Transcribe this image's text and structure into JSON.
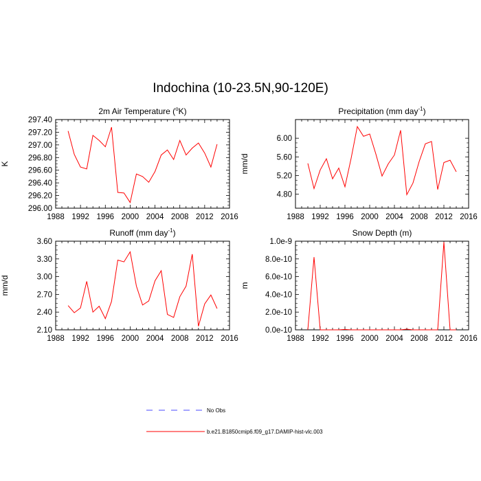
{
  "figure": {
    "title": "Indochina (10-23.5N,90-120E)"
  },
  "legend": {
    "entries": [
      {
        "label": "No Obs",
        "color": "#4a4aff",
        "style": "dashed"
      },
      {
        "label": "b.e21.B1850cmip6.f09_g17.DAMIP-hist-vlc.003",
        "color": "#ff0000",
        "style": "solid"
      }
    ]
  },
  "chart_data": [
    {
      "type": "line",
      "title": "2m Air Temperature (",
      "title_sup": "o",
      "title_end": "K)",
      "xlabel": "",
      "ylabel": "K",
      "xlim": [
        1988,
        2016
      ],
      "ylim": [
        296.0,
        297.4
      ],
      "xticks": [
        1988,
        1992,
        1996,
        2000,
        2004,
        2008,
        2012,
        2016
      ],
      "yticks": [
        296.0,
        296.2,
        296.4,
        296.6,
        296.8,
        297.0,
        297.2,
        297.4
      ],
      "ytick_labels": [
        "296.00",
        "296.20",
        "296.40",
        "296.60",
        "296.80",
        "297.00",
        "297.20",
        "297.40"
      ],
      "series": [
        {
          "name": "b.e21.B1850cmip6.f09_g17.DAMIP-hist-vlc.003",
          "color": "#ff0000",
          "x": [
            1990,
            1991,
            1992,
            1993,
            1994,
            1995,
            1996,
            1997,
            1998,
            1999,
            2000,
            2001,
            2002,
            2003,
            2004,
            2005,
            2006,
            2007,
            2008,
            2009,
            2010,
            2011,
            2012,
            2013,
            2014
          ],
          "y": [
            297.22,
            296.85,
            296.65,
            296.62,
            297.15,
            297.07,
            296.97,
            297.28,
            296.25,
            296.24,
            296.09,
            296.54,
            296.5,
            296.41,
            296.58,
            296.84,
            296.92,
            296.77,
            297.07,
            296.84,
            296.95,
            297.03,
            296.87,
            296.65,
            297.01
          ]
        }
      ]
    },
    {
      "type": "line",
      "title": "Precipitation (mm day",
      "title_sup": "-1",
      "title_end": ")",
      "xlabel": "",
      "ylabel": "mm/d",
      "xlim": [
        1988,
        2016
      ],
      "ylim": [
        4.5,
        6.4
      ],
      "xticks": [
        1988,
        1992,
        1996,
        2000,
        2004,
        2008,
        2012,
        2016
      ],
      "yticks": [
        4.8,
        5.2,
        5.6,
        6.0
      ],
      "ytick_labels": [
        "4.80",
        "5.20",
        "5.60",
        "6.00"
      ],
      "series": [
        {
          "name": "b.e21.B1850cmip6.f09_g17.DAMIP-hist-vlc.003",
          "color": "#ff0000",
          "x": [
            1990,
            1991,
            1992,
            1993,
            1994,
            1995,
            1996,
            1997,
            1998,
            1999,
            2000,
            2001,
            2002,
            2003,
            2004,
            2005,
            2006,
            2007,
            2008,
            2009,
            2010,
            2011,
            2012,
            2013,
            2014
          ],
          "y": [
            5.46,
            4.92,
            5.32,
            5.56,
            5.13,
            5.36,
            4.96,
            5.57,
            6.25,
            6.04,
            6.09,
            5.66,
            5.19,
            5.45,
            5.64,
            6.17,
            4.79,
            5.04,
            5.5,
            5.88,
            5.93,
            4.9,
            5.48,
            5.53,
            5.28
          ]
        }
      ]
    },
    {
      "type": "line",
      "title": "Runoff (mm day",
      "title_sup": "-1",
      "title_end": ")",
      "xlabel": "",
      "ylabel": "mm/d",
      "xlim": [
        1988,
        2016
      ],
      "ylim": [
        2.1,
        3.6
      ],
      "xticks": [
        1988,
        1992,
        1996,
        2000,
        2004,
        2008,
        2012,
        2016
      ],
      "yticks": [
        2.1,
        2.4,
        2.7,
        3.0,
        3.3,
        3.6
      ],
      "ytick_labels": [
        "2.10",
        "2.40",
        "2.70",
        "3.00",
        "3.30",
        "3.60"
      ],
      "series": [
        {
          "name": "b.e21.B1850cmip6.f09_g17.DAMIP-hist-vlc.003",
          "color": "#ff0000",
          "x": [
            1990,
            1991,
            1992,
            1993,
            1994,
            1995,
            1996,
            1997,
            1998,
            1999,
            2000,
            2001,
            2002,
            2003,
            2004,
            2005,
            2006,
            2007,
            2008,
            2009,
            2010,
            2011,
            2012,
            2013,
            2014
          ],
          "y": [
            2.51,
            2.39,
            2.47,
            2.92,
            2.4,
            2.5,
            2.29,
            2.58,
            3.28,
            3.25,
            3.42,
            2.84,
            2.52,
            2.59,
            2.93,
            3.1,
            2.36,
            2.31,
            2.66,
            2.84,
            3.38,
            2.16,
            2.54,
            2.69,
            2.46
          ]
        }
      ]
    },
    {
      "type": "line",
      "title": "Snow Depth (m)",
      "title_sup": "",
      "title_end": "",
      "xlabel": "",
      "ylabel": "m",
      "xlim": [
        1988,
        2016
      ],
      "ylim": [
        0,
        1e-09
      ],
      "xticks": [
        1988,
        1992,
        1996,
        2000,
        2004,
        2008,
        2012,
        2016
      ],
      "yticks": [
        0,
        2e-10,
        4e-10,
        6e-10,
        8e-10,
        1e-09
      ],
      "ytick_labels": [
        "0.0e-10",
        "2.0e-10",
        "4.0e-10",
        "6.0e-10",
        "8.0e-10",
        "1.0e-9"
      ],
      "series": [
        {
          "name": "b.e21.B1850cmip6.f09_g17.DAMIP-hist-vlc.003",
          "color": "#ff0000",
          "x": [
            1990,
            1991,
            1992,
            1993,
            1994,
            1995,
            1996,
            1997,
            1998,
            1999,
            2000,
            2001,
            2002,
            2003,
            2004,
            2005,
            2006,
            2007,
            2008,
            2009,
            2010,
            2011,
            2012,
            2013,
            2014
          ],
          "y": [
            0,
            8.2e-10,
            0,
            0,
            0,
            0,
            5e-12,
            0,
            0,
            0,
            0,
            0,
            0,
            0,
            0,
            0,
            8e-12,
            0,
            0,
            0,
            0,
            0,
            9.9e-10,
            0,
            0
          ]
        }
      ]
    }
  ]
}
